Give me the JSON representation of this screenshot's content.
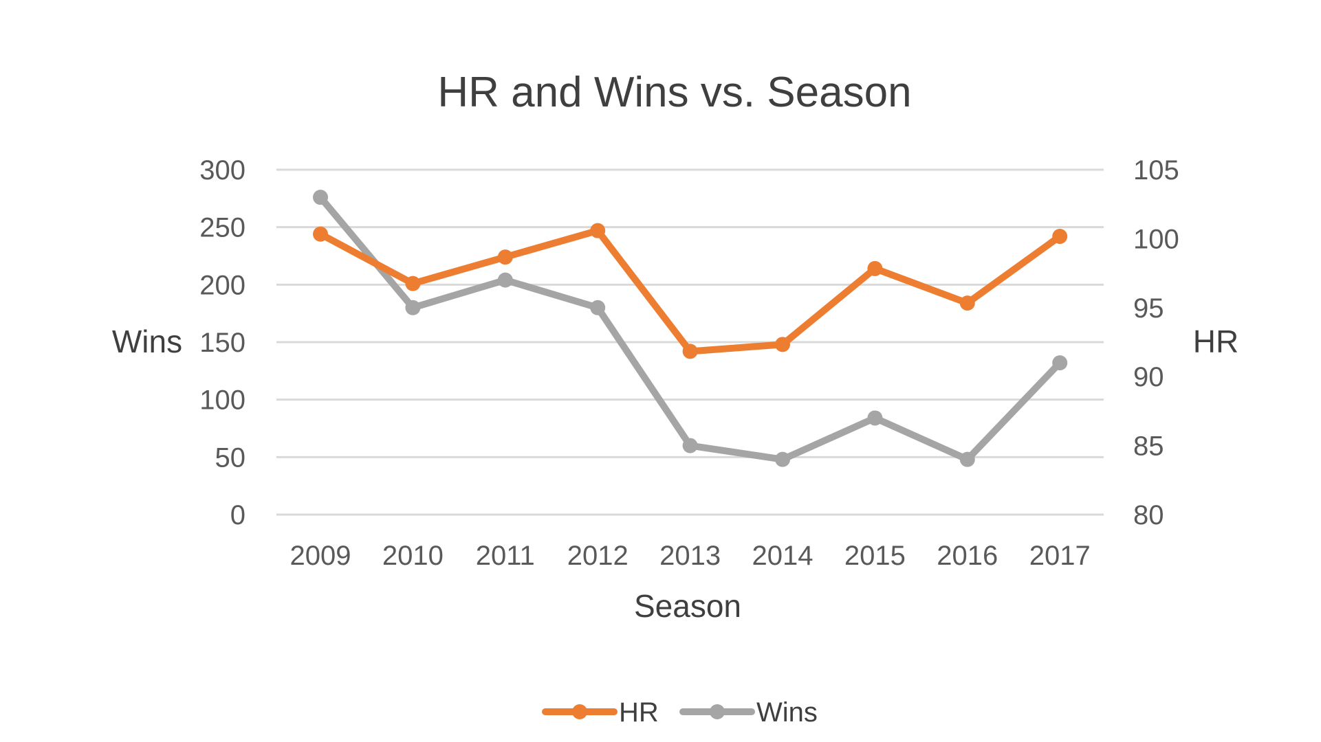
{
  "chart_data": {
    "type": "line",
    "title": "HR and Wins vs. Season",
    "xlabel": "Season",
    "ylabel": "Wins",
    "y2label": "HR",
    "categories": [
      "2009",
      "2010",
      "2011",
      "2012",
      "2013",
      "2014",
      "2015",
      "2016",
      "2017"
    ],
    "ylim": [
      0,
      300
    ],
    "yticks": [
      "0",
      "50",
      "100",
      "150",
      "200",
      "250",
      "300"
    ],
    "y2lim": [
      80,
      105
    ],
    "y2ticks": [
      "80",
      "85",
      "90",
      "95",
      "100",
      "105"
    ],
    "grid": true,
    "legend_position": "bottom",
    "series": [
      {
        "name": "HR",
        "axis": "left",
        "color": "#ED7D31",
        "values": [
          244,
          201,
          224,
          247,
          142,
          148,
          214,
          184,
          242
        ]
      },
      {
        "name": "Wins",
        "axis": "right",
        "color": "#A5A5A5",
        "values": [
          103,
          95,
          97,
          95,
          85,
          84,
          87,
          84,
          91
        ]
      }
    ]
  }
}
